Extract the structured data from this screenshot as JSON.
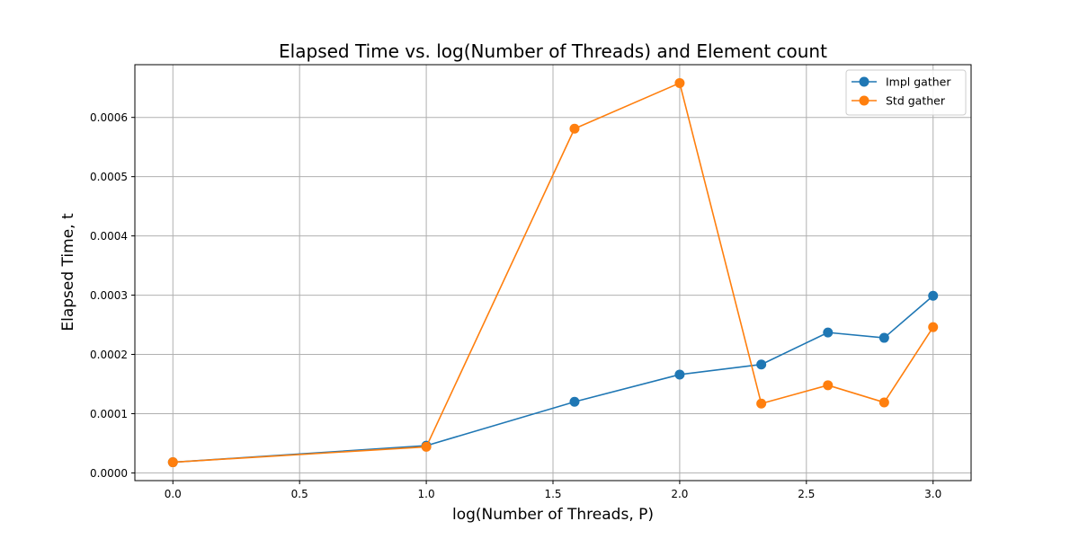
{
  "chart_data": {
    "type": "line",
    "title": "Elapsed Time vs. log(Number of Threads) and Element count",
    "xlabel": "log(Number of Threads, P)",
    "ylabel": "Elapsed Time, t",
    "xlim": [
      -0.15,
      3.15
    ],
    "ylim": [
      -1.3e-05,
      0.000689
    ],
    "xticks": [
      0.0,
      0.5,
      1.0,
      1.5,
      2.0,
      2.5,
      3.0
    ],
    "xtick_labels": [
      "0.0",
      "0.5",
      "1.0",
      "1.5",
      "2.0",
      "2.5",
      "3.0"
    ],
    "yticks": [
      0.0,
      0.0001,
      0.0002,
      0.0003,
      0.0004,
      0.0005,
      0.0006
    ],
    "ytick_labels": [
      "0.0000",
      "0.0001",
      "0.0002",
      "0.0003",
      "0.0004",
      "0.0005",
      "0.0006"
    ],
    "grid": true,
    "legend_position": "top-right",
    "series": [
      {
        "name": "Impl gather",
        "color": "#1f77b4",
        "x": [
          0.0,
          1.0,
          1.585,
          2.0,
          2.322,
          2.585,
          2.807,
          3.0
        ],
        "y": [
          1.8e-05,
          4.6e-05,
          0.00012,
          0.000166,
          0.000183,
          0.000237,
          0.000228,
          0.000299
        ]
      },
      {
        "name": "Std gather",
        "color": "#ff7f0e",
        "x": [
          0.0,
          1.0,
          1.585,
          2.0,
          2.322,
          2.585,
          2.807,
          3.0
        ],
        "y": [
          1.8e-05,
          4.4e-05,
          0.000581,
          0.000658,
          0.000117,
          0.000148,
          0.000119,
          0.000246
        ]
      }
    ]
  }
}
